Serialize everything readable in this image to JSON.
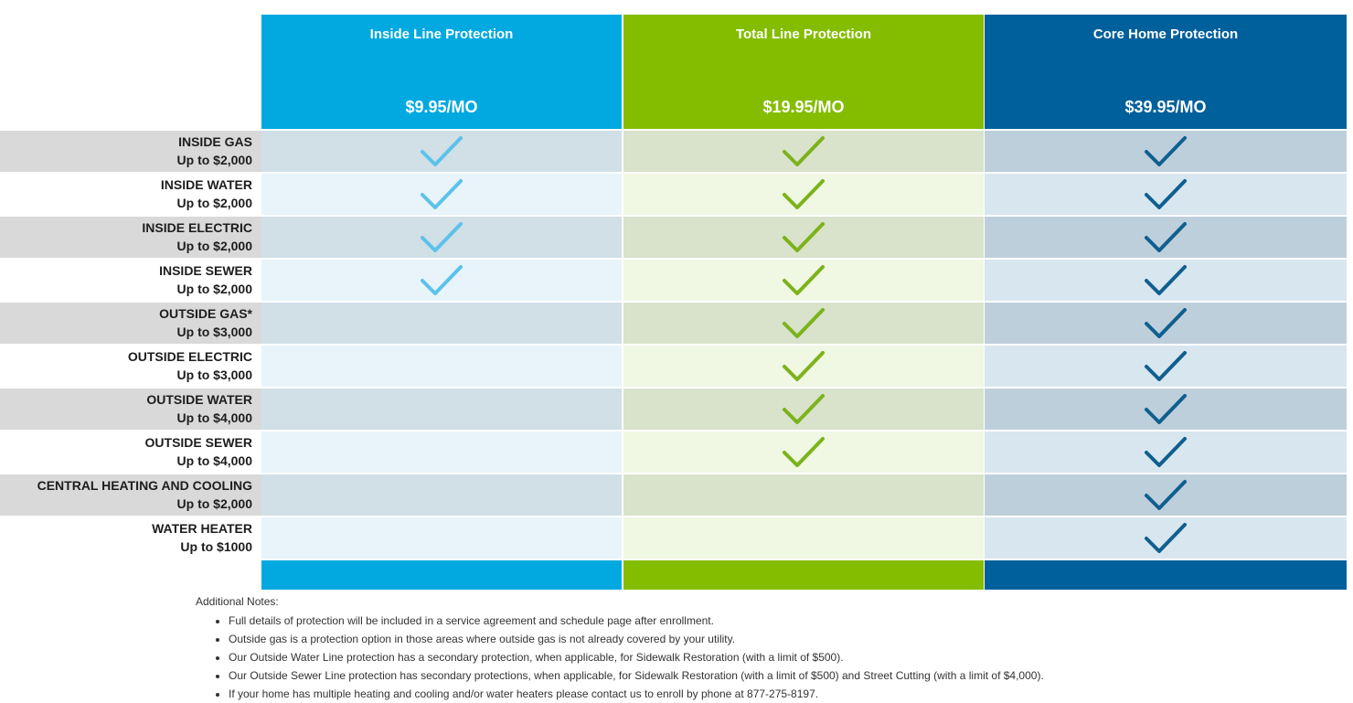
{
  "plans": [
    {
      "name": "Inside Line Protection",
      "price": "$9.95/MO",
      "color": "#01a9e0",
      "check_color": "#5bc2ea"
    },
    {
      "name": "Total Line Protection",
      "price": "$19.95/MO",
      "color": "#84bd00",
      "check_color": "#7bb31a"
    },
    {
      "name": "Core Home Protection",
      "price": "$39.95/MO",
      "color": "#00609c",
      "check_color": "#0f5f8f"
    }
  ],
  "rows": [
    {
      "name": "INSIDE GAS",
      "limit": "Up to $2,000",
      "included": [
        true,
        true,
        true
      ]
    },
    {
      "name": "INSIDE WATER",
      "limit": "Up to $2,000",
      "included": [
        true,
        true,
        true
      ]
    },
    {
      "name": "INSIDE ELECTRIC",
      "limit": "Up to $2,000",
      "included": [
        true,
        true,
        true
      ]
    },
    {
      "name": "INSIDE SEWER",
      "limit": "Up to $2,000",
      "included": [
        true,
        true,
        true
      ]
    },
    {
      "name": "OUTSIDE GAS*",
      "limit": "Up to $3,000",
      "included": [
        false,
        true,
        true
      ]
    },
    {
      "name": "OUTSIDE ELECTRIC",
      "limit": "Up to $3,000",
      "included": [
        false,
        true,
        true
      ]
    },
    {
      "name": "OUTSIDE WATER",
      "limit": "Up to $4,000",
      "included": [
        false,
        true,
        true
      ]
    },
    {
      "name": "OUTSIDE SEWER",
      "limit": "Up to $4,000",
      "included": [
        false,
        true,
        true
      ]
    },
    {
      "name": "CENTRAL HEATING AND COOLING",
      "limit": "Up to $2,000",
      "included": [
        false,
        false,
        true
      ]
    },
    {
      "name": "WATER HEATER",
      "limit": "Up to $1000",
      "included": [
        false,
        false,
        true
      ]
    }
  ],
  "notes": {
    "title": "Additional Notes:",
    "items": [
      "Full details of protection will be included in a service agreement and schedule page after enrollment.",
      "Outside gas is a protection option in those areas where outside gas is not already covered by your utility.",
      "Our Outside Water Line protection has a secondary protection, when applicable, for Sidewalk Restoration (with a limit of $500).",
      "Our Outside Sewer Line protection has secondary protections, when applicable, for Sidewalk Restoration (with a limit of $500) and Street Cutting (with a limit of $4,000).",
      "If your home has multiple heating and cooling and/or water heaters please contact us to enroll by phone at 877-275-8197."
    ]
  }
}
